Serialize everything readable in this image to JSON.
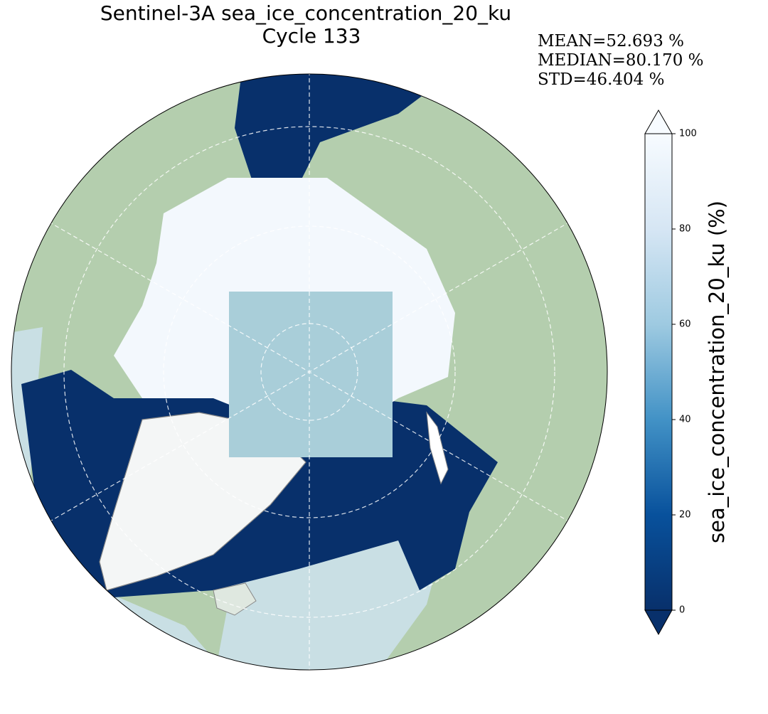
{
  "title": [
    "Sentinel-3A sea_ice_concentration_20_ku",
    "Cycle 133"
  ],
  "stats": [
    "MEAN=52.693 %",
    "MEDIAN=80.170 %",
    "STD=46.404 %"
  ],
  "colorbar": {
    "label": "sea_ice_concentration_20_ku (%)",
    "lim": [
      0,
      100
    ],
    "ticks": [
      0,
      20,
      40,
      60,
      80,
      100
    ]
  }
}
